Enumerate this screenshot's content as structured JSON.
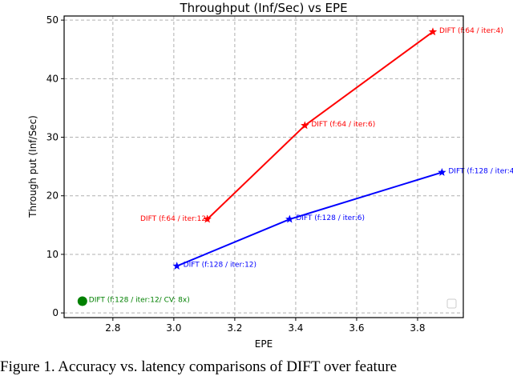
{
  "chart_data": {
    "type": "line",
    "title": "Throughput (Inf/Sec) vs EPE",
    "xlabel": "EPE",
    "ylabel": "Through put (Inf/Sec)",
    "xlim": [
      2.64,
      3.95
    ],
    "ylim": [
      -0.8,
      50.7
    ],
    "xticks": [
      "2.8",
      "3.0",
      "3.2",
      "3.4",
      "3.6",
      "3.8"
    ],
    "yticks": [
      "0",
      "10",
      "20",
      "30",
      "40",
      "50"
    ],
    "grid": true,
    "legend": "bottom-right (empty)",
    "series": [
      {
        "color": "#ff0000",
        "marker": "star",
        "points": [
          {
            "x": 3.11,
            "y": 16,
            "label": "DIFT (f:64 / iter:12)"
          },
          {
            "x": 3.43,
            "y": 32,
            "label": "DIFT (f:64 / iter:6)"
          },
          {
            "x": 3.85,
            "y": 48,
            "label": "DIFT (f:64 / iter:4)"
          }
        ]
      },
      {
        "color": "#0000ff",
        "marker": "star",
        "points": [
          {
            "x": 3.01,
            "y": 8,
            "label": "DIFT (f:128 / iter:12)"
          },
          {
            "x": 3.38,
            "y": 16,
            "label": "DIFT (f:128 / iter:6)"
          },
          {
            "x": 3.88,
            "y": 24,
            "label": "DIFT (f:128 / iter:4)"
          }
        ]
      },
      {
        "color": "#008000",
        "marker": "circle",
        "points": [
          {
            "x": 2.7,
            "y": 2,
            "label": "DIFT (f:128 / iter:12/ CV: 8x)"
          }
        ]
      }
    ]
  },
  "caption": "Figure 1. Accuracy vs. latency comparisons of DIFT over feature"
}
